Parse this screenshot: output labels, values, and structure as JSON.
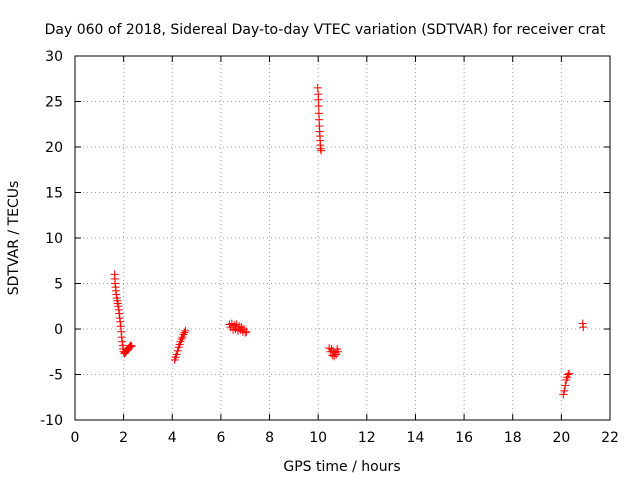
{
  "chart_data": {
    "type": "scatter",
    "title": "Day 060 of 2018, Sidereal Day-to-day VTEC variation (SDTVAR) for receiver crat",
    "xlabel": "GPS time / hours",
    "ylabel": "SDTVAR / TECUs",
    "xlim": [
      0,
      22
    ],
    "ylim": [
      -10,
      30
    ],
    "xticks": [
      "0",
      "2",
      "4",
      "6",
      "8",
      "10",
      "12",
      "14",
      "16",
      "18",
      "20",
      "22"
    ],
    "yticks": [
      "-10",
      "-5",
      "0",
      "5",
      "10",
      "15",
      "20",
      "25",
      "30"
    ],
    "grid": true,
    "marker": "plus",
    "color": "#ff0000",
    "series": [
      {
        "name": "SDTVAR",
        "points": [
          [
            1.63,
            6.0
          ],
          [
            1.64,
            5.5
          ],
          [
            1.65,
            5.0
          ],
          [
            1.67,
            4.6
          ],
          [
            1.68,
            4.2
          ],
          [
            1.7,
            3.8
          ],
          [
            1.72,
            3.4
          ],
          [
            1.74,
            3.1
          ],
          [
            1.76,
            2.8
          ],
          [
            1.78,
            2.5
          ],
          [
            1.8,
            2.1
          ],
          [
            1.82,
            1.7
          ],
          [
            1.84,
            1.2
          ],
          [
            1.86,
            0.8
          ],
          [
            1.88,
            0.3
          ],
          [
            1.9,
            -0.3
          ],
          [
            1.92,
            -0.9
          ],
          [
            1.94,
            -1.4
          ],
          [
            1.96,
            -1.8
          ],
          [
            1.98,
            -2.2
          ],
          [
            2.0,
            -2.5
          ],
          [
            2.03,
            -2.7
          ],
          [
            2.06,
            -2.6
          ],
          [
            2.09,
            -2.5
          ],
          [
            2.12,
            -2.4
          ],
          [
            2.15,
            -2.3
          ],
          [
            2.18,
            -2.2
          ],
          [
            2.21,
            -2.1
          ],
          [
            2.24,
            -2.0
          ],
          [
            2.27,
            -1.9
          ],
          [
            2.3,
            -1.8
          ],
          [
            2.33,
            -1.9
          ],
          [
            4.1,
            -3.4
          ],
          [
            4.14,
            -3.1
          ],
          [
            4.18,
            -2.8
          ],
          [
            4.22,
            -2.4
          ],
          [
            4.26,
            -2.0
          ],
          [
            4.3,
            -1.7
          ],
          [
            4.34,
            -1.4
          ],
          [
            4.38,
            -1.1
          ],
          [
            4.42,
            -0.9
          ],
          [
            4.46,
            -0.6
          ],
          [
            4.5,
            -0.4
          ],
          [
            4.54,
            -0.2
          ],
          [
            6.35,
            0.5
          ],
          [
            6.4,
            0.2
          ],
          [
            6.45,
            0.6
          ],
          [
            6.5,
            -0.1
          ],
          [
            6.55,
            0.4
          ],
          [
            6.6,
            0.0
          ],
          [
            6.65,
            0.5
          ],
          [
            6.7,
            -0.2
          ],
          [
            6.75,
            0.3
          ],
          [
            6.8,
            -0.1
          ],
          [
            6.85,
            0.2
          ],
          [
            6.9,
            -0.3
          ],
          [
            6.95,
            0.0
          ],
          [
            7.0,
            -0.4
          ],
          [
            7.05,
            -0.3
          ],
          [
            9.98,
            26.5
          ],
          [
            10.0,
            25.8
          ],
          [
            10.01,
            25.2
          ],
          [
            10.02,
            24.5
          ],
          [
            10.03,
            23.7
          ],
          [
            10.04,
            23.0
          ],
          [
            10.05,
            22.3
          ],
          [
            10.06,
            21.7
          ],
          [
            10.07,
            21.2
          ],
          [
            10.08,
            20.7
          ],
          [
            10.09,
            20.2
          ],
          [
            10.1,
            19.8
          ],
          [
            10.12,
            19.6
          ],
          [
            10.45,
            -2.1
          ],
          [
            10.5,
            -2.5
          ],
          [
            10.55,
            -2.2
          ],
          [
            10.58,
            -2.9
          ],
          [
            10.62,
            -2.4
          ],
          [
            10.66,
            -3.0
          ],
          [
            10.7,
            -2.6
          ],
          [
            10.74,
            -2.8
          ],
          [
            10.78,
            -2.2
          ],
          [
            10.82,
            -2.5
          ],
          [
            20.08,
            -7.2
          ],
          [
            20.12,
            -6.8
          ],
          [
            20.16,
            -6.2
          ],
          [
            20.2,
            -5.6
          ],
          [
            20.24,
            -5.3
          ],
          [
            20.28,
            -5.0
          ],
          [
            20.32,
            -4.9
          ],
          [
            20.88,
            0.6
          ],
          [
            20.9,
            0.2
          ]
        ]
      }
    ]
  }
}
